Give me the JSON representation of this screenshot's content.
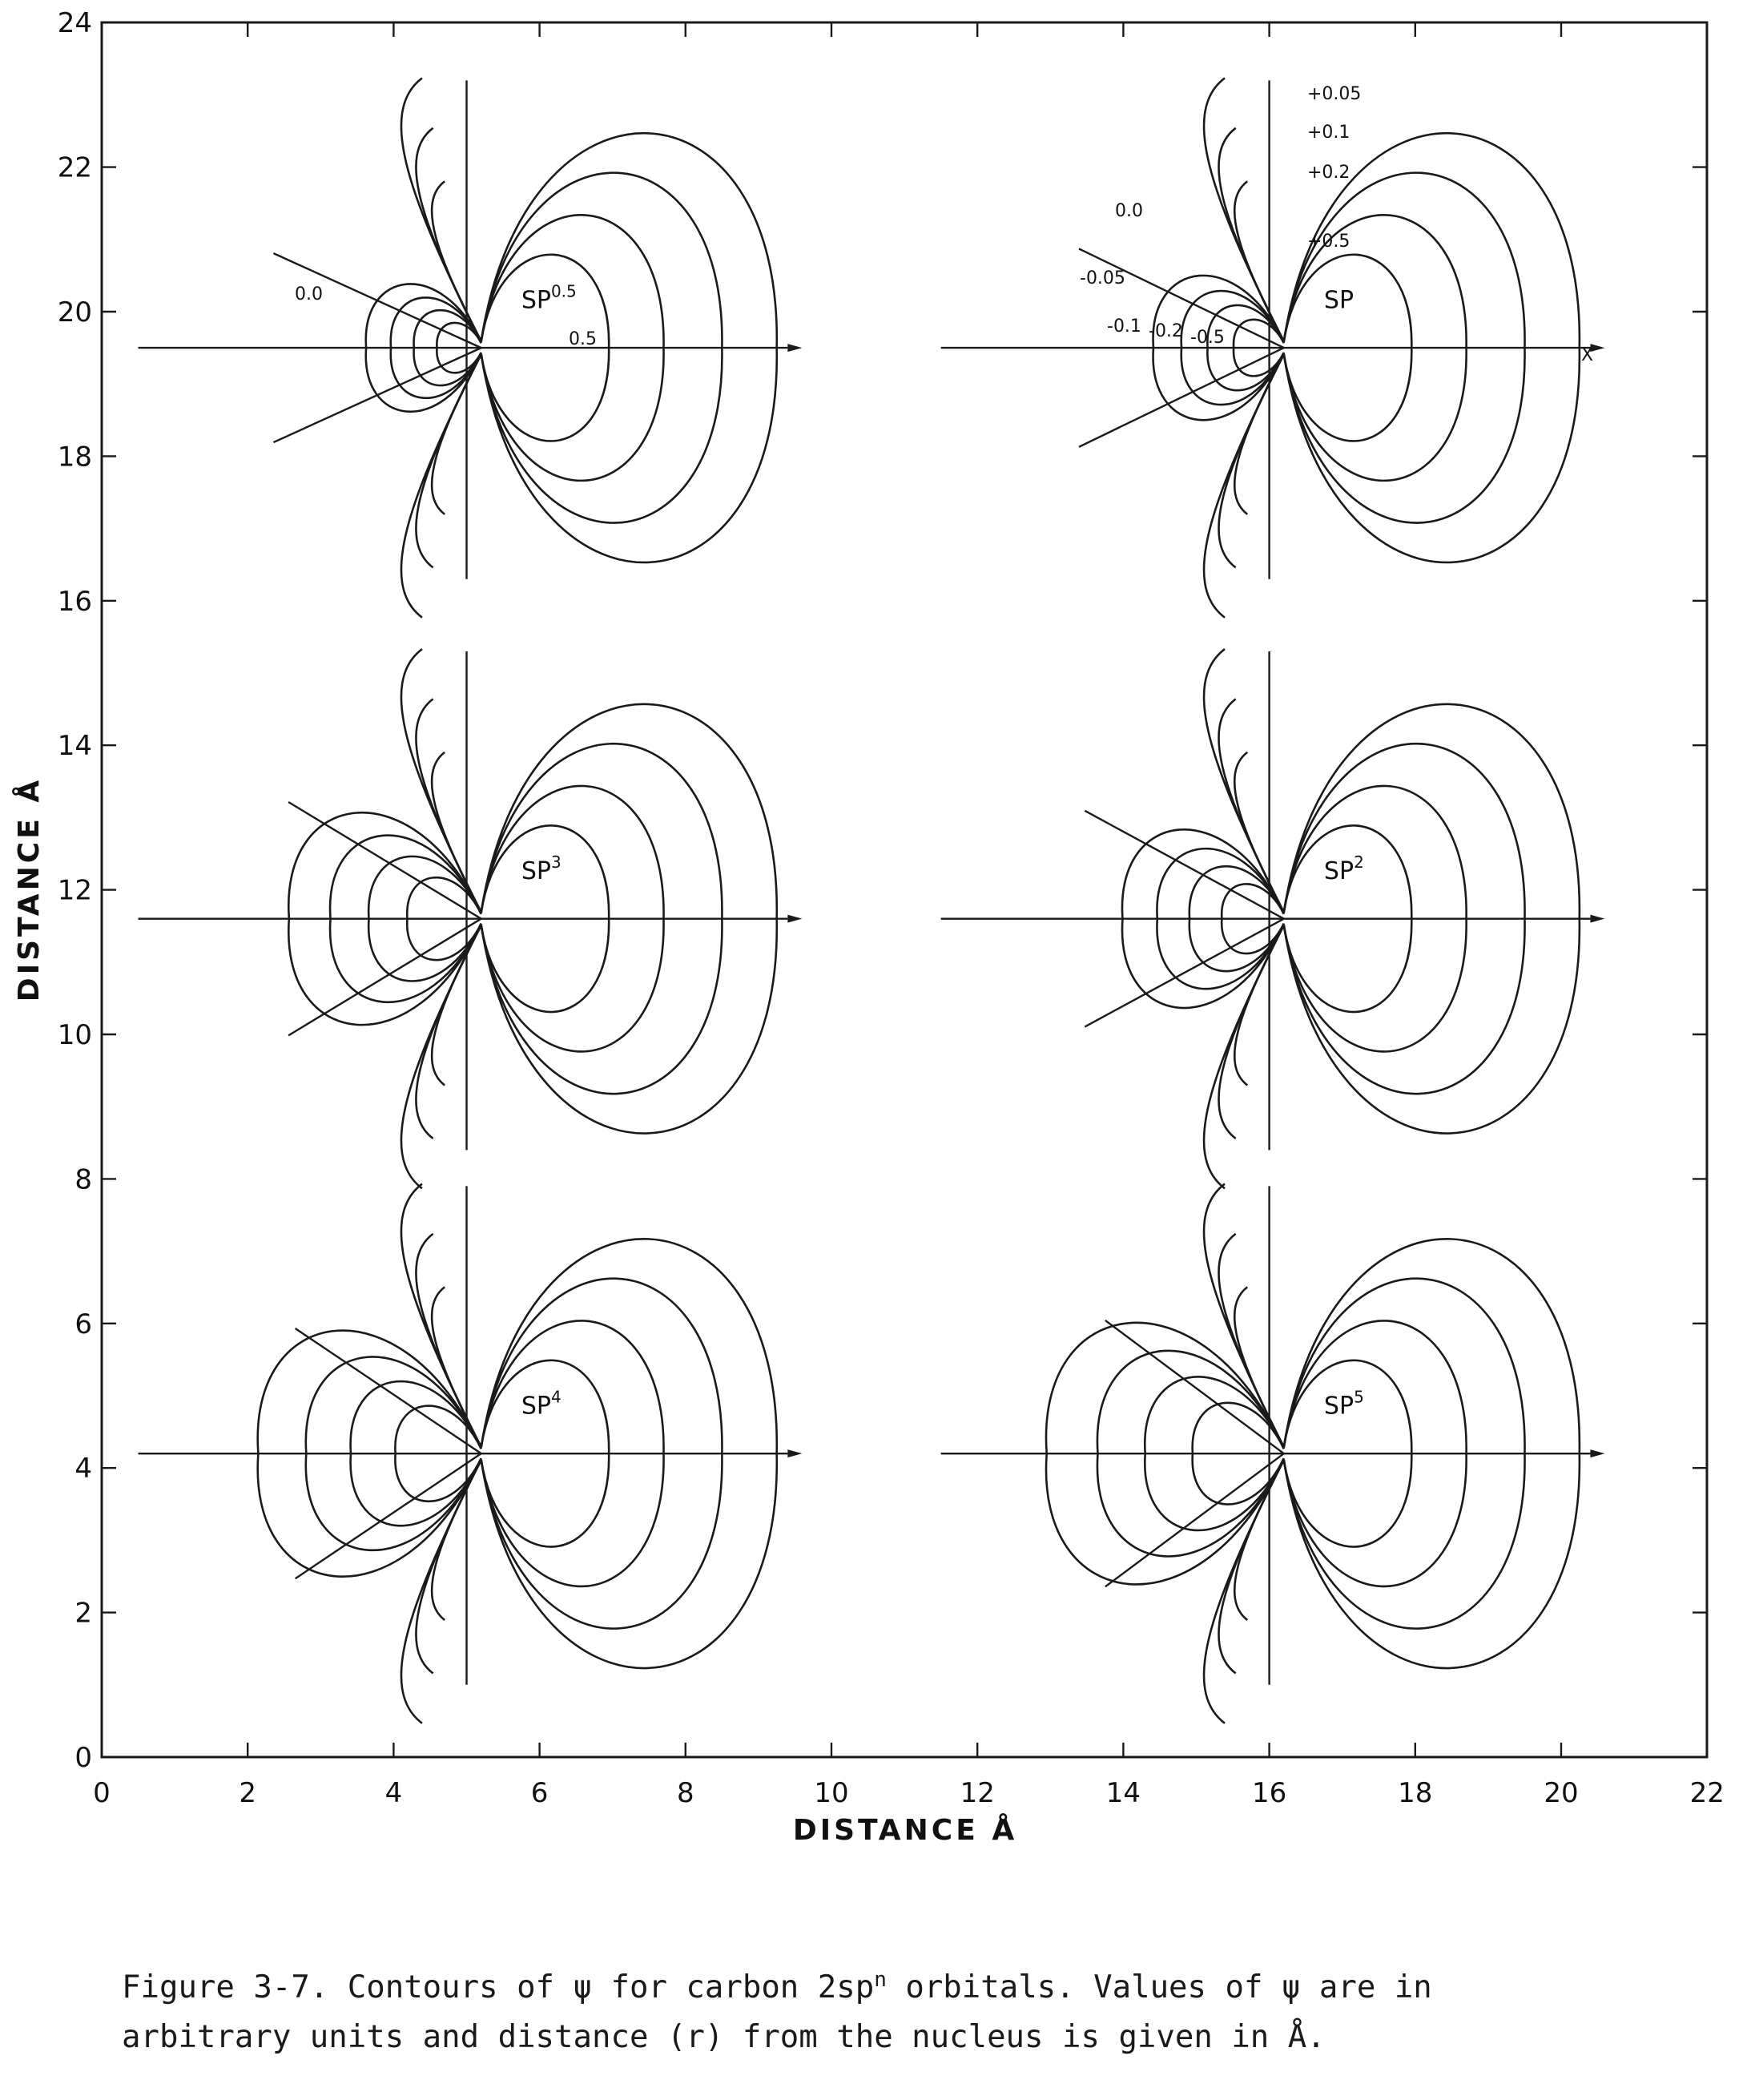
{
  "chart_data": {
    "type": "contour",
    "xlabel": "DISTANCE Å",
    "ylabel": "DISTANCE Å",
    "xlim": [
      0,
      22
    ],
    "ylim": [
      0,
      24
    ],
    "x_ticks": [
      "0",
      "2",
      "4",
      "6",
      "8",
      "10",
      "12",
      "14",
      "16",
      "18",
      "20",
      "22"
    ],
    "y_ticks": [
      "0",
      "2",
      "4",
      "6",
      "8",
      "10",
      "12",
      "14",
      "16",
      "18",
      "20",
      "22",
      "24"
    ],
    "panels": [
      {
        "label": "SP",
        "sup": "0.5",
        "n": 0.5,
        "nucleus": [
          5,
          19.5
        ]
      },
      {
        "label": "SP",
        "sup": "",
        "n": 1,
        "nucleus": [
          16,
          19.5
        ]
      },
      {
        "label": "SP",
        "sup": "3",
        "n": 3,
        "nucleus": [
          5,
          11.6
        ]
      },
      {
        "label": "SP",
        "sup": "2",
        "n": 2,
        "nucleus": [
          16,
          11.6
        ]
      },
      {
        "label": "SP",
        "sup": "4",
        "n": 4,
        "nucleus": [
          5,
          4.2
        ]
      },
      {
        "label": "SP",
        "sup": "5",
        "n": 5,
        "nucleus": [
          16,
          4.2
        ]
      }
    ],
    "contour_labels": {
      "sp05": [
        "0.0",
        "0.5"
      ],
      "sp": [
        "+0.05",
        "+0.1",
        "+0.2",
        "+0.5",
        "0.0",
        "-0.05",
        "-0.1",
        "-0.2",
        "-0.5",
        "X"
      ]
    }
  },
  "caption": {
    "line1_a": "Figure 3-7.  Contours of ψ for carbon 2sp",
    "line1_sup": "n",
    "line1_b": " orbitals.  Values of ψ are in",
    "line2": "arbitrary units and distance (r) from the nucleus is given in Å."
  }
}
